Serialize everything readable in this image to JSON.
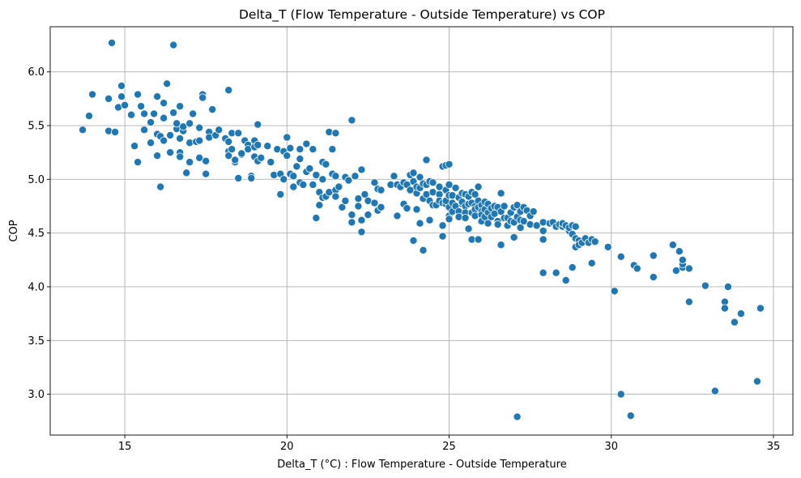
{
  "chart_data": {
    "type": "scatter",
    "title": "Delta_T (Flow Temperature - Outside Temperature) vs COP",
    "xlabel": "Delta_T (°C) : Flow Temperature - Outside Temperature",
    "ylabel": "COP",
    "xlim": [
      12.7,
      35.6
    ],
    "ylim": [
      2.62,
      6.42
    ],
    "xticks": [
      15,
      20,
      25,
      30,
      35
    ],
    "yticks": [
      3.0,
      3.5,
      4.0,
      4.5,
      5.0,
      5.5,
      6.0
    ],
    "xtick_labels": [
      "15",
      "20",
      "25",
      "30",
      "35"
    ],
    "ytick_labels": [
      "3.0",
      "3.5",
      "4.0",
      "4.5",
      "5.0",
      "5.5",
      "6.0"
    ],
    "grid": true,
    "marker_color": "#1f77b4",
    "points": [
      [
        13.7,
        5.46
      ],
      [
        13.9,
        5.59
      ],
      [
        14.0,
        5.79
      ],
      [
        14.5,
        5.75
      ],
      [
        14.5,
        5.45
      ],
      [
        14.6,
        6.27
      ],
      [
        14.7,
        5.44
      ],
      [
        14.8,
        5.67
      ],
      [
        14.9,
        5.77
      ],
      [
        14.9,
        5.87
      ],
      [
        15.0,
        5.69
      ],
      [
        15.2,
        5.6
      ],
      [
        15.3,
        5.31
      ],
      [
        15.4,
        5.16
      ],
      [
        15.4,
        5.79
      ],
      [
        15.5,
        5.68
      ],
      [
        15.6,
        5.61
      ],
      [
        15.6,
        5.46
      ],
      [
        15.8,
        5.34
      ],
      [
        15.8,
        5.53
      ],
      [
        15.9,
        5.61
      ],
      [
        16.0,
        5.77
      ],
      [
        16.0,
        5.42
      ],
      [
        16.0,
        5.22
      ],
      [
        16.1,
        5.4
      ],
      [
        16.1,
        4.93
      ],
      [
        16.2,
        5.71
      ],
      [
        16.2,
        5.57
      ],
      [
        16.2,
        5.36
      ],
      [
        16.3,
        5.89
      ],
      [
        16.4,
        5.41
      ],
      [
        16.4,
        5.25
      ],
      [
        16.5,
        6.25
      ],
      [
        16.5,
        5.62
      ],
      [
        16.6,
        5.47
      ],
      [
        16.6,
        5.52
      ],
      [
        16.7,
        5.68
      ],
      [
        16.7,
        5.38
      ],
      [
        16.7,
        5.25
      ],
      [
        16.7,
        5.21
      ],
      [
        16.8,
        5.45
      ],
      [
        16.8,
        5.49
      ],
      [
        16.9,
        5.06
      ],
      [
        17.0,
        5.52
      ],
      [
        17.0,
        5.34
      ],
      [
        17.0,
        5.16
      ],
      [
        17.1,
        5.61
      ],
      [
        17.2,
        5.35
      ],
      [
        17.3,
        5.36
      ],
      [
        17.3,
        5.48
      ],
      [
        17.3,
        5.2
      ],
      [
        17.4,
        5.79
      ],
      [
        17.4,
        5.76
      ],
      [
        17.5,
        5.17
      ],
      [
        17.5,
        5.05
      ],
      [
        17.6,
        5.44
      ],
      [
        17.6,
        5.39
      ],
      [
        17.7,
        5.65
      ],
      [
        17.8,
        5.41
      ],
      [
        17.8,
        5.41
      ],
      [
        17.9,
        5.46
      ],
      [
        18.1,
        5.38
      ],
      [
        18.2,
        5.35
      ],
      [
        18.2,
        5.26
      ],
      [
        18.2,
        5.22
      ],
      [
        18.2,
        5.83
      ],
      [
        18.3,
        5.43
      ],
      [
        18.3,
        5.28
      ],
      [
        18.4,
        5.16
      ],
      [
        18.4,
        5.18
      ],
      [
        18.5,
        5.43
      ],
      [
        18.5,
        5.01
      ],
      [
        18.6,
        5.23
      ],
      [
        18.6,
        5.24
      ],
      [
        18.7,
        5.36
      ],
      [
        18.8,
        5.32
      ],
      [
        18.8,
        5.28
      ],
      [
        18.9,
        5.03
      ],
      [
        18.9,
        5.01
      ],
      [
        19.0,
        5.36
      ],
      [
        19.0,
        5.3
      ],
      [
        19.0,
        5.21
      ],
      [
        19.1,
        5.51
      ],
      [
        19.1,
        5.32
      ],
      [
        19.1,
        5.17
      ],
      [
        19.2,
        5.2
      ],
      [
        19.4,
        5.31
      ],
      [
        19.5,
        5.16
      ],
      [
        19.6,
        5.04
      ],
      [
        19.7,
        5.28
      ],
      [
        19.8,
        5.05
      ],
      [
        19.8,
        4.86
      ],
      [
        19.9,
        5.26
      ],
      [
        19.9,
        5.0
      ],
      [
        20.0,
        5.39
      ],
      [
        20.0,
        5.22
      ],
      [
        20.1,
        5.29
      ],
      [
        20.1,
        5.05
      ],
      [
        20.2,
        4.93
      ],
      [
        20.2,
        5.03
      ],
      [
        20.3,
        5.12
      ],
      [
        20.4,
        5.28
      ],
      [
        20.4,
        5.19
      ],
      [
        20.4,
        4.97
      ],
      [
        20.5,
        4.95
      ],
      [
        20.6,
        5.07
      ],
      [
        20.6,
        5.33
      ],
      [
        20.7,
        5.1
      ],
      [
        20.8,
        5.28
      ],
      [
        20.8,
        4.95
      ],
      [
        20.9,
        5.04
      ],
      [
        20.9,
        4.64
      ],
      [
        21.0,
        4.88
      ],
      [
        21.0,
        4.76
      ],
      [
        21.1,
        5.16
      ],
      [
        21.1,
        5.0
      ],
      [
        21.1,
        4.83
      ],
      [
        21.2,
        4.84
      ],
      [
        21.2,
        5.14
      ],
      [
        21.3,
        5.44
      ],
      [
        21.3,
        4.88
      ],
      [
        21.4,
        5.05
      ],
      [
        21.4,
        5.28
      ],
      [
        21.5,
        5.03
      ],
      [
        21.5,
        5.43
      ],
      [
        21.5,
        4.9
      ],
      [
        21.5,
        4.84
      ],
      [
        21.6,
        4.93
      ],
      [
        21.7,
        4.74
      ],
      [
        21.8,
        5.02
      ],
      [
        21.8,
        4.8
      ],
      [
        21.9,
        4.99
      ],
      [
        22.0,
        5.55
      ],
      [
        22.0,
        4.67
      ],
      [
        22.0,
        4.6
      ],
      [
        22.1,
        5.03
      ],
      [
        22.2,
        4.75
      ],
      [
        22.2,
        4.82
      ],
      [
        22.3,
        4.51
      ],
      [
        22.3,
        4.62
      ],
      [
        22.3,
        5.09
      ],
      [
        22.4,
        4.86
      ],
      [
        22.5,
        4.8
      ],
      [
        22.5,
        4.67
      ],
      [
        22.7,
        4.78
      ],
      [
        22.7,
        4.97
      ],
      [
        22.8,
        4.71
      ],
      [
        22.8,
        4.91
      ],
      [
        22.9,
        4.9
      ],
      [
        22.9,
        4.74
      ],
      [
        23.2,
        4.95
      ],
      [
        23.3,
        5.03
      ],
      [
        23.4,
        4.95
      ],
      [
        23.4,
        4.66
      ],
      [
        23.5,
        4.93
      ],
      [
        23.6,
        4.97
      ],
      [
        23.6,
        4.77
      ],
      [
        23.7,
        4.95
      ],
      [
        23.7,
        4.73
      ],
      [
        23.8,
        4.9
      ],
      [
        23.8,
        5.04
      ],
      [
        23.9,
        5.06
      ],
      [
        23.9,
        4.98
      ],
      [
        23.9,
        4.43
      ],
      [
        24.0,
        4.72
      ],
      [
        24.0,
        4.87
      ],
      [
        24.0,
        4.93
      ],
      [
        24.1,
        4.92
      ],
      [
        24.1,
        4.59
      ],
      [
        24.1,
        5.02
      ],
      [
        24.2,
        4.96
      ],
      [
        24.2,
        4.82
      ],
      [
        24.2,
        4.34
      ],
      [
        24.3,
        5.18
      ],
      [
        24.3,
        4.86
      ],
      [
        24.3,
        4.95
      ],
      [
        24.4,
        4.8
      ],
      [
        24.4,
        4.98
      ],
      [
        24.4,
        4.62
      ],
      [
        24.5,
        4.76
      ],
      [
        24.5,
        4.88
      ],
      [
        24.5,
        4.97
      ],
      [
        24.6,
        4.76
      ],
      [
        24.7,
        4.86
      ],
      [
        24.7,
        4.8
      ],
      [
        24.7,
        4.93
      ],
      [
        24.8,
        4.78
      ],
      [
        24.8,
        4.57
      ],
      [
        24.8,
        4.47
      ],
      [
        24.8,
        5.12
      ],
      [
        24.9,
        4.9
      ],
      [
        24.9,
        4.77
      ],
      [
        24.9,
        4.8
      ],
      [
        24.9,
        5.13
      ],
      [
        25.0,
        4.85
      ],
      [
        25.0,
        4.95
      ],
      [
        25.0,
        5.14
      ],
      [
        25.0,
        4.74
      ],
      [
        25.0,
        4.66
      ],
      [
        25.0,
        4.63
      ],
      [
        25.1,
        4.85
      ],
      [
        25.1,
        4.7
      ],
      [
        25.1,
        4.78
      ],
      [
        25.2,
        4.92
      ],
      [
        25.2,
        4.75
      ],
      [
        25.3,
        4.83
      ],
      [
        25.3,
        4.7
      ],
      [
        25.3,
        4.65
      ],
      [
        25.4,
        4.77
      ],
      [
        25.4,
        4.79
      ],
      [
        25.4,
        4.87
      ],
      [
        25.5,
        4.86
      ],
      [
        25.5,
        4.75
      ],
      [
        25.5,
        4.69
      ],
      [
        25.5,
        4.64
      ],
      [
        25.6,
        4.77
      ],
      [
        25.6,
        4.84
      ],
      [
        25.6,
        4.54
      ],
      [
        25.7,
        4.88
      ],
      [
        25.7,
        4.78
      ],
      [
        25.7,
        4.69
      ],
      [
        25.7,
        4.44
      ],
      [
        25.8,
        4.86
      ],
      [
        25.8,
        4.75
      ],
      [
        25.8,
        4.72
      ],
      [
        25.8,
        4.66
      ],
      [
        25.9,
        4.93
      ],
      [
        25.9,
        4.8
      ],
      [
        25.9,
        4.74
      ],
      [
        25.9,
        4.44
      ],
      [
        26.0,
        4.76
      ],
      [
        26.0,
        4.7
      ],
      [
        26.0,
        4.67
      ],
      [
        26.0,
        4.61
      ],
      [
        26.1,
        4.79
      ],
      [
        26.1,
        4.72
      ],
      [
        26.1,
        4.65
      ],
      [
        26.2,
        4.77
      ],
      [
        26.2,
        4.69
      ],
      [
        26.2,
        4.59
      ],
      [
        26.3,
        4.73
      ],
      [
        26.3,
        4.65
      ],
      [
        26.4,
        4.68
      ],
      [
        26.4,
        4.75
      ],
      [
        26.5,
        4.74
      ],
      [
        26.5,
        4.61
      ],
      [
        26.5,
        4.58
      ],
      [
        26.6,
        4.87
      ],
      [
        26.6,
        4.7
      ],
      [
        26.6,
        4.39
      ],
      [
        26.7,
        4.75
      ],
      [
        26.7,
        4.64
      ],
      [
        26.8,
        4.64
      ],
      [
        26.8,
        4.57
      ],
      [
        26.9,
        4.61
      ],
      [
        26.9,
        4.69
      ],
      [
        27.0,
        4.74
      ],
      [
        27.0,
        4.6
      ],
      [
        27.0,
        4.46
      ],
      [
        27.1,
        4.76
      ],
      [
        27.1,
        4.65
      ],
      [
        27.1,
        2.79
      ],
      [
        27.2,
        4.55
      ],
      [
        27.2,
        4.7
      ],
      [
        27.2,
        4.62
      ],
      [
        27.3,
        4.74
      ],
      [
        27.3,
        4.61
      ],
      [
        27.4,
        4.71
      ],
      [
        27.5,
        4.66
      ],
      [
        27.5,
        4.58
      ],
      [
        27.6,
        4.7
      ],
      [
        27.7,
        4.57
      ],
      [
        27.9,
        4.6
      ],
      [
        27.9,
        4.52
      ],
      [
        27.9,
        4.44
      ],
      [
        27.9,
        4.13
      ],
      [
        28.1,
        4.59
      ],
      [
        28.2,
        4.6
      ],
      [
        28.3,
        4.13
      ],
      [
        28.3,
        4.56
      ],
      [
        28.4,
        4.58
      ],
      [
        28.5,
        4.56
      ],
      [
        28.5,
        4.59
      ],
      [
        28.6,
        4.57
      ],
      [
        28.6,
        4.06
      ],
      [
        28.7,
        4.52
      ],
      [
        28.7,
        4.55
      ],
      [
        28.8,
        4.57
      ],
      [
        28.8,
        4.18
      ],
      [
        28.8,
        4.49
      ],
      [
        28.9,
        4.45
      ],
      [
        28.9,
        4.56
      ],
      [
        28.9,
        4.37
      ],
      [
        29.0,
        4.43
      ],
      [
        29.0,
        4.39
      ],
      [
        29.1,
        4.41
      ],
      [
        29.2,
        4.45
      ],
      [
        29.3,
        4.41
      ],
      [
        29.3,
        4.41
      ],
      [
        29.4,
        4.44
      ],
      [
        29.4,
        4.22
      ],
      [
        29.5,
        4.42
      ],
      [
        29.9,
        4.37
      ],
      [
        30.1,
        3.96
      ],
      [
        30.3,
        4.28
      ],
      [
        30.3,
        3.0
      ],
      [
        30.6,
        2.8
      ],
      [
        30.7,
        4.2
      ],
      [
        30.8,
        4.17
      ],
      [
        31.3,
        4.09
      ],
      [
        31.3,
        4.29
      ],
      [
        31.9,
        4.39
      ],
      [
        32.0,
        4.15
      ],
      [
        32.1,
        4.33
      ],
      [
        32.2,
        4.18
      ],
      [
        32.2,
        4.21
      ],
      [
        32.2,
        4.25
      ],
      [
        32.4,
        4.17
      ],
      [
        32.4,
        3.86
      ],
      [
        32.9,
        4.01
      ],
      [
        33.2,
        3.03
      ],
      [
        33.5,
        3.86
      ],
      [
        33.5,
        3.8
      ],
      [
        33.6,
        4.0
      ],
      [
        33.8,
        3.67
      ],
      [
        34.0,
        3.75
      ],
      [
        34.5,
        3.12
      ],
      [
        34.6,
        3.8
      ]
    ]
  }
}
